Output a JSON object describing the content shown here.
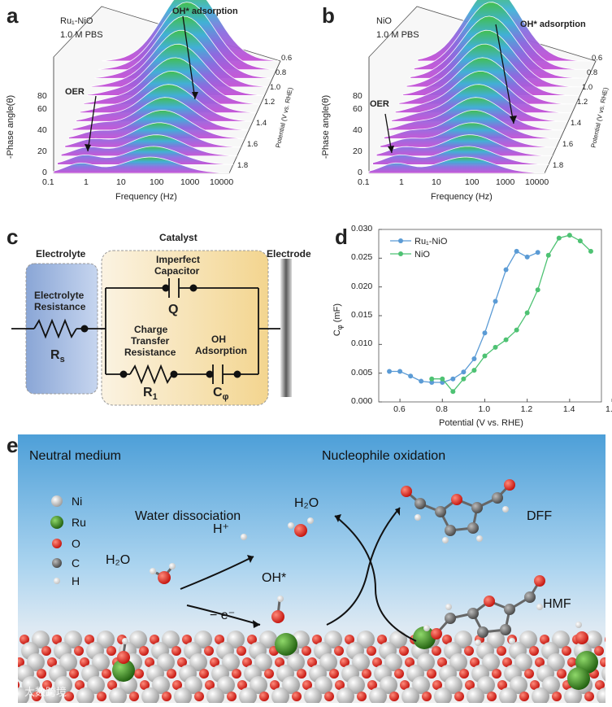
{
  "panel_a": {
    "label": "a",
    "sample": "Ru₁-NiO",
    "electrolyte": "1.0 M PBS",
    "peak_annotation": "OH* adsorption",
    "oer_annotation": "OER",
    "ylabel": "-Phase angle(θ)",
    "xlabel": "Frequency (Hz)",
    "zlabel": "Potential (V vs. RHE)",
    "y_ticks": [
      "0",
      "20",
      "40",
      "60",
      "80"
    ],
    "x_ticks": [
      "0.1",
      "1",
      "10",
      "100",
      "1000",
      "10000"
    ],
    "z_ticks": [
      "0.6",
      "0.8",
      "1.0",
      "1.2",
      "1.4",
      "1.6",
      "1.8"
    ]
  },
  "panel_b": {
    "label": "b",
    "sample": "NiO",
    "electrolyte": "1.0 M PBS",
    "peak_annotation": "OH* adsorption",
    "oer_annotation": "OER",
    "ylabel": "-Phase angle(θ)",
    "xlabel": "Frequency (Hz)",
    "zlabel": "Potential (V vs. RHE)",
    "y_ticks": [
      "0",
      "20",
      "40",
      "60",
      "80"
    ],
    "x_ticks": [
      "0.1",
      "1",
      "10",
      "100",
      "1000",
      "10000"
    ],
    "z_ticks": [
      "0.6",
      "0.8",
      "1.0",
      "1.2",
      "1.4",
      "1.6",
      "1.8"
    ]
  },
  "panel_c": {
    "label": "c",
    "electrolyte": "Electrolyte",
    "catalyst": "Catalyst",
    "electrode": "Electrode",
    "rs_desc_1": "Electrolyte",
    "rs_desc_2": "Resistance",
    "rs_symbol": "R",
    "rs_sub": "s",
    "q_desc_1": "Imperfect",
    "q_desc_2": "Capacitor",
    "q_symbol": "Q",
    "r1_desc_1": "Charge",
    "r1_desc_2": "Transfer",
    "r1_desc_3": "Resistance",
    "r1_symbol": "R",
    "r1_sub": "1",
    "c_desc_1": "OH",
    "c_desc_2": "Adsorption",
    "c_symbol": "C",
    "c_sub": "φ"
  },
  "panel_d": {
    "label": "d"
  },
  "chart_data": {
    "type": "line",
    "title": "",
    "xlabel": "Potential (V vs. RHE)",
    "ylabel": "Cφ (mF)",
    "xlim": [
      0.5,
      1.55
    ],
    "ylim": [
      0.0,
      0.03
    ],
    "x_ticks": [
      "0.6",
      "0.8",
      "1.0",
      "1.2",
      "1.4",
      "1."
    ],
    "y_ticks": [
      "0.000",
      "0.005",
      "0.010",
      "0.015",
      "0.020",
      "0.025",
      "0.030"
    ],
    "legend_position": "top-left",
    "series": [
      {
        "name": "Ru₁-NiO",
        "color": "#5b9bd5",
        "x": [
          0.55,
          0.6,
          0.65,
          0.7,
          0.75,
          0.8,
          0.85,
          0.9,
          0.95,
          1.0,
          1.05,
          1.1,
          1.15,
          1.2,
          1.25
        ],
        "y": [
          0.0053,
          0.0053,
          0.0045,
          0.0036,
          0.0034,
          0.0034,
          0.004,
          0.0052,
          0.0075,
          0.012,
          0.0175,
          0.023,
          0.0262,
          0.0252,
          0.026
        ]
      },
      {
        "name": "NiO",
        "color": "#4ec273",
        "x": [
          0.75,
          0.8,
          0.85,
          0.9,
          0.95,
          1.0,
          1.05,
          1.1,
          1.15,
          1.2,
          1.25,
          1.3,
          1.35,
          1.4,
          1.45,
          1.5
        ],
        "y": [
          0.004,
          0.004,
          0.0018,
          0.004,
          0.0055,
          0.008,
          0.0095,
          0.0108,
          0.0125,
          0.0155,
          0.0195,
          0.0255,
          0.0285,
          0.029,
          0.028,
          0.0262
        ]
      }
    ]
  },
  "panel_e": {
    "label": "e",
    "medium": "Neutral medium",
    "process": "Nucleophile oxidation",
    "water_dissociation": "Water dissociation",
    "h2o_left": "H₂O",
    "h2o_top": "H₂O",
    "h_plus": "H⁺",
    "electron": "− e⁻",
    "oh_star": "OH*",
    "dff": "DFF",
    "hmf": "HMF",
    "legend": [
      {
        "symbol": "Ni",
        "color": "#d8d8d8"
      },
      {
        "symbol": "Ru",
        "color": "#3a8a1e"
      },
      {
        "symbol": "O",
        "color": "#e0201a"
      },
      {
        "symbol": "C",
        "color": "#777777"
      },
      {
        "symbol": "H",
        "color": "#ffffff"
      }
    ],
    "watermark": "大数跨境"
  }
}
